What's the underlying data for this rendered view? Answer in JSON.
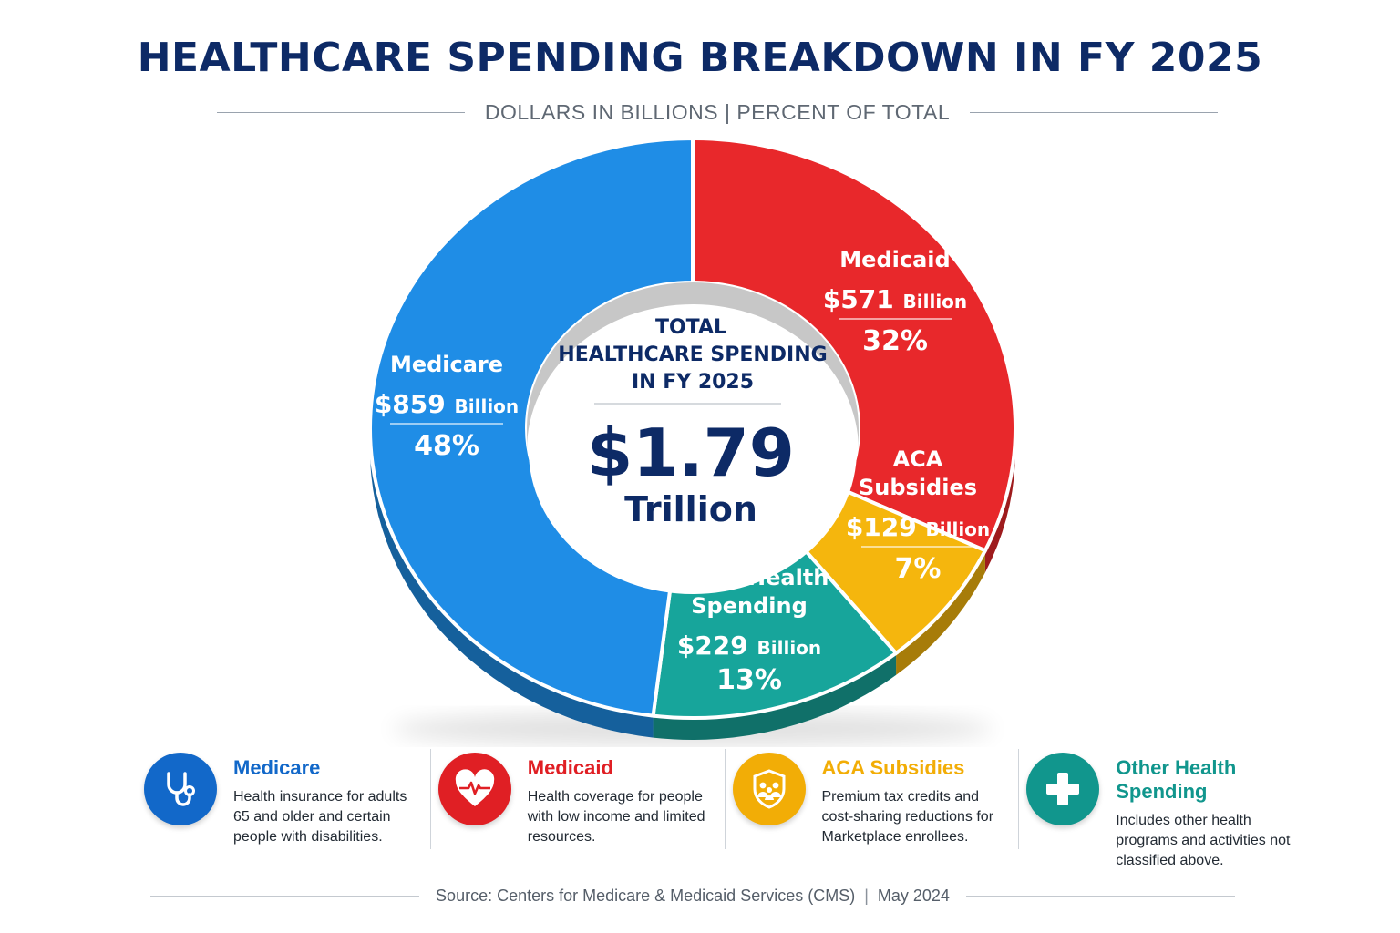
{
  "title": "HEALTHCARE SPENDING BREAKDOWN IN FY 2025",
  "subtitle": "DOLLARS IN BILLIONS | PERCENT OF TOTAL",
  "center": {
    "line1": "TOTAL",
    "line2": "HEALTHCARE SPENDING",
    "line3": "IN FY 2025",
    "amount": "$1.79",
    "unit": "Trillion"
  },
  "chart_data": {
    "type": "pie",
    "style": "donut",
    "title": "HEALTHCARE SPENDING BREAKDOWN IN FY 2025",
    "total_label": "$1.79 Trillion",
    "total_billions": 1788,
    "categories": [
      "Medicare",
      "Medicaid",
      "ACA Subsidies",
      "Other Health Spending"
    ],
    "values": [
      859,
      571,
      129,
      229
    ],
    "percents": [
      48,
      32,
      7,
      13
    ],
    "slices": [
      {
        "name": "Medicare",
        "label_lines": [
          "Medicare"
        ],
        "amount": "$859",
        "unit": "Billion",
        "value": 859,
        "percent": 48,
        "percent_label": "48%",
        "color": "#1f8de6"
      },
      {
        "name": "Medicaid",
        "label_lines": [
          "Medicaid"
        ],
        "amount": "$571",
        "unit": "Billion",
        "value": 571,
        "percent": 32,
        "percent_label": "32%",
        "color": "#e8282b"
      },
      {
        "name": "ACA Subsidies",
        "label_lines": [
          "ACA",
          "Subsidies"
        ],
        "amount": "$129",
        "unit": "Billion",
        "value": 129,
        "percent": 7,
        "percent_label": "7%",
        "color": "#f5b60d"
      },
      {
        "name": "Other Health Spending",
        "label_lines": [
          "Other Health",
          "Spending"
        ],
        "amount": "$229",
        "unit": "Billion",
        "value": 229,
        "percent": 13,
        "percent_label": "13%",
        "color": "#17a59b"
      }
    ]
  },
  "legend": [
    {
      "title": "Medicare",
      "desc": "Health insurance for adults 65 and older and certain people with disabilities.",
      "color": "#1268c9",
      "icon": "stethoscope-icon"
    },
    {
      "title": "Medicaid",
      "desc": "Health coverage for people with low income and limited resources.",
      "color": "#e01f24",
      "icon": "heart-pulse-icon"
    },
    {
      "title": "ACA Subsidies",
      "desc": "Premium tax credits and cost-sharing reductions for Marketplace enrollees.",
      "color": "#f2ad06",
      "icon": "family-shield-icon"
    },
    {
      "title": "Other Health Spending",
      "desc": "Includes other health programs and activities not classified above.",
      "color": "#11968d",
      "icon": "plus-icon"
    }
  ],
  "source": {
    "text": "Source: Centers for Medicare & Medicaid Services (CMS)",
    "date": "May 2024"
  }
}
